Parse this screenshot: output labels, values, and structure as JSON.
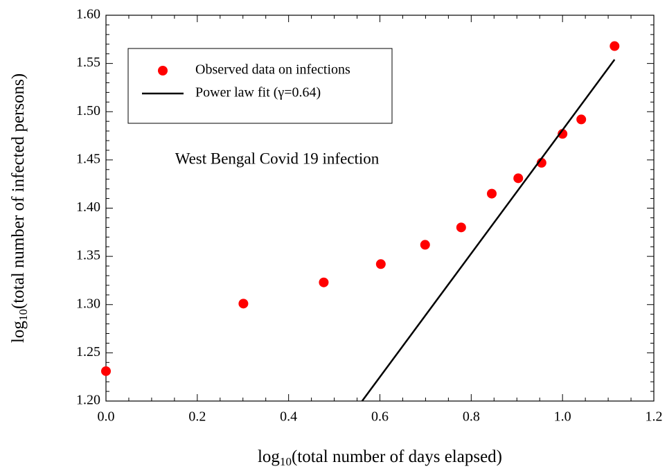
{
  "chart_data": {
    "type": "scatter",
    "xlabel": [
      "log",
      "10",
      "(total number of days elapsed)"
    ],
    "ylabel": [
      "log",
      "10",
      "(total number of infected persons)"
    ],
    "annotation": "West Bengal Covid 19 infection",
    "series": [
      {
        "name": "Observed data on infections",
        "type": "scatter",
        "color": "#ff0000",
        "x": [
          0,
          0.301,
          0.477,
          0.602,
          0.699,
          0.778,
          0.845,
          0.903,
          0.954,
          1.0,
          1.041,
          1.114
        ],
        "values": [
          1.231,
          1.301,
          1.323,
          1.342,
          1.362,
          1.38,
          1.415,
          1.431,
          1.447,
          1.477,
          1.492,
          1.568
        ]
      },
      {
        "name": "Power law fit (γ=0.64)",
        "type": "line",
        "color": "#000000",
        "x": [
          0.561,
          1.114
        ],
        "values": [
          1.2,
          1.554
        ]
      }
    ],
    "xlim": [
      0,
      1.2
    ],
    "xticks": [
      {
        "value": 0,
        "label": "0.0"
      },
      0.2,
      0.4,
      0.6,
      0.8,
      {
        "value": 1,
        "label": "1.0"
      },
      1.2
    ],
    "ylim": [
      1.2,
      1.6
    ],
    "yticks": [
      {
        "value": 1.2,
        "label": "1.20"
      },
      1.25,
      {
        "value": 1.3,
        "label": "1.30"
      },
      1.35,
      {
        "value": 1.4,
        "label": "1.40"
      },
      1.45,
      {
        "value": 1.5,
        "label": "1.50"
      },
      1.55,
      {
        "value": 1.6,
        "label": "1.60"
      }
    ]
  }
}
